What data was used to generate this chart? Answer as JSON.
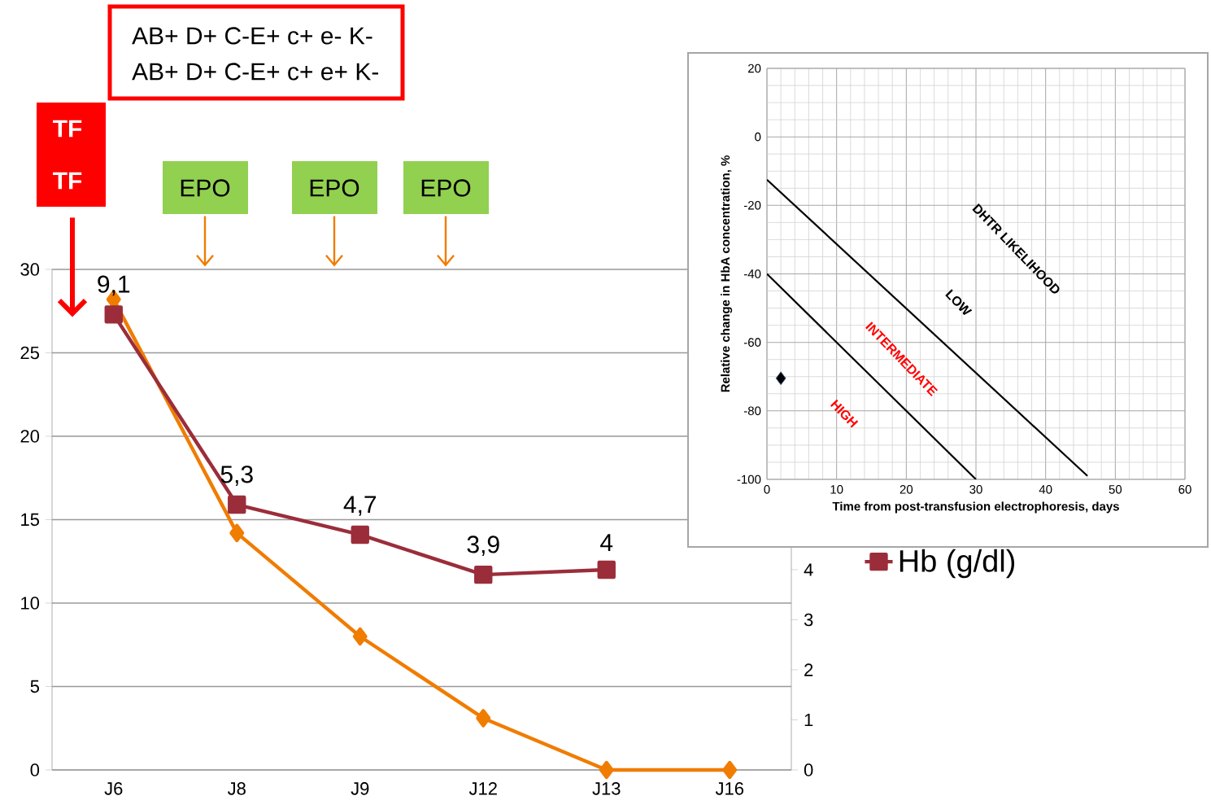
{
  "chart_data": [
    {
      "type": "line",
      "categories": [
        "J6",
        "J8",
        "J9",
        "J12",
        "J13",
        "J16"
      ],
      "series": [
        {
          "color": "#f07c00",
          "values": [
            28.2,
            14.2,
            8,
            3.1,
            0,
            0
          ],
          "marker": "diamond"
        },
        {
          "name": "Hb (g/dl)",
          "color": "#9b2d3a",
          "axis": "y2",
          "values": [
            9.1,
            5.3,
            4.7,
            3.9,
            4.0,
            null
          ],
          "marker": "square",
          "value_labels": [
            "9,1",
            "5,3",
            "4,7",
            "3,9",
            "4",
            null
          ]
        }
      ],
      "ylim": [
        0,
        30
      ],
      "yticks": [
        0,
        5,
        10,
        15,
        20,
        25,
        30
      ],
      "y2lim": [
        0,
        10
      ],
      "y2ticks": [
        0,
        1,
        2,
        3,
        4
      ],
      "grid": "y",
      "legend": "right",
      "annotations": [
        "AB+ D+ C-E+ c+ e- K-",
        "AB+ D+ C-E+ c+ e+ K-",
        "TF",
        "TF",
        "EPO",
        "EPO",
        "EPO"
      ]
    },
    {
      "type": "scatter",
      "xlabel": "Time from post-transfusion  electrophoresis, days",
      "ylabel": "Relative change in HbA concentration, %",
      "series": [
        {
          "type": "scatter",
          "color": "#000000",
          "x": [
            2
          ],
          "values": [
            -70.5
          ],
          "marker": "diamond"
        },
        {
          "type": "line",
          "color": "#000000",
          "x": [
            0,
            46
          ],
          "values": [
            -12.5,
            -99
          ],
          "marker": "none"
        },
        {
          "type": "line",
          "color": "#000000",
          "x": [
            0,
            30
          ],
          "values": [
            -40,
            -100
          ],
          "marker": "none"
        }
      ],
      "xlim": [
        0,
        60
      ],
      "xticks": [
        0,
        10,
        20,
        30,
        40,
        50,
        60
      ],
      "ylim": [
        -100,
        20
      ],
      "yticks": [
        -100,
        -80,
        -60,
        -40,
        -20,
        0,
        20
      ],
      "grid": true,
      "annotations": [
        "DHTR LIKELIHOOD",
        "LOW",
        "INTERMEDIATE",
        "HIGH"
      ]
    }
  ]
}
